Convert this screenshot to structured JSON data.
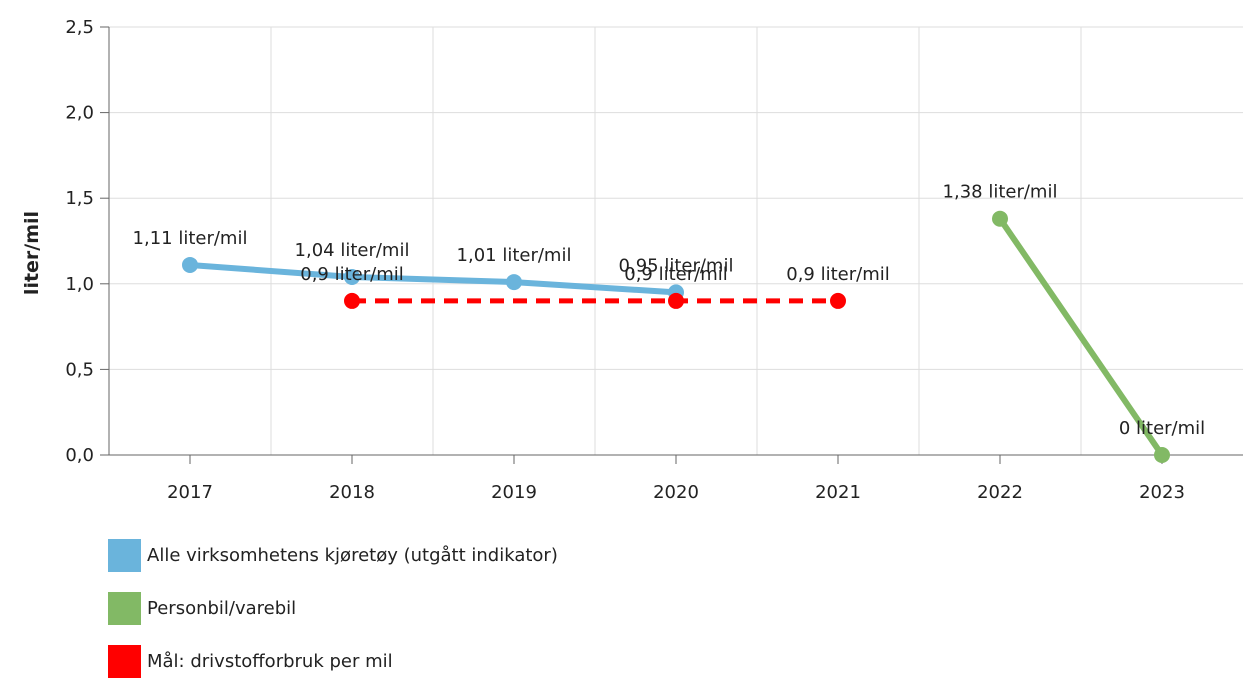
{
  "chart_data": {
    "type": "line",
    "xlabel": "",
    "ylabel": "liter/mil",
    "x": [
      "2017",
      "2018",
      "2019",
      "2020",
      "2021",
      "2022",
      "2023"
    ],
    "ylim": [
      0,
      2.5
    ],
    "yticks": [
      "0,0",
      "0,5",
      "1,0",
      "1,5",
      "2,0",
      "2,5"
    ],
    "grid": true,
    "legend_position": "bottom-left",
    "series": [
      {
        "name": "Alle virksomhetens kjøretøy (utgått indikator)",
        "color": "#6ab4dc",
        "dashed": false,
        "points": [
          {
            "x": "2017",
            "y": 1.11,
            "label": "1,11 liter/mil"
          },
          {
            "x": "2018",
            "y": 1.04,
            "label": "1,04 liter/mil"
          },
          {
            "x": "2019",
            "y": 1.01,
            "label": "1,01 liter/mil"
          },
          {
            "x": "2020",
            "y": 0.95,
            "label": "0,95 liter/mil"
          }
        ]
      },
      {
        "name": "Personbil/varebil",
        "color": "#82b965",
        "dashed": false,
        "points": [
          {
            "x": "2022",
            "y": 1.38,
            "label": "1,38 liter/mil"
          },
          {
            "x": "2023",
            "y": 0,
            "label": "0 liter/mil"
          }
        ]
      },
      {
        "name": "Mål: drivstofforbruk per mil",
        "color": "#ff0000",
        "dashed": true,
        "points": [
          {
            "x": "2018",
            "y": 0.9,
            "label": "0,9 liter/mil"
          },
          {
            "x": "2020",
            "y": 0.9,
            "label": "0,9 liter/mil"
          },
          {
            "x": "2021",
            "y": 0.9,
            "label": "0,9 liter/mil"
          }
        ]
      }
    ]
  }
}
